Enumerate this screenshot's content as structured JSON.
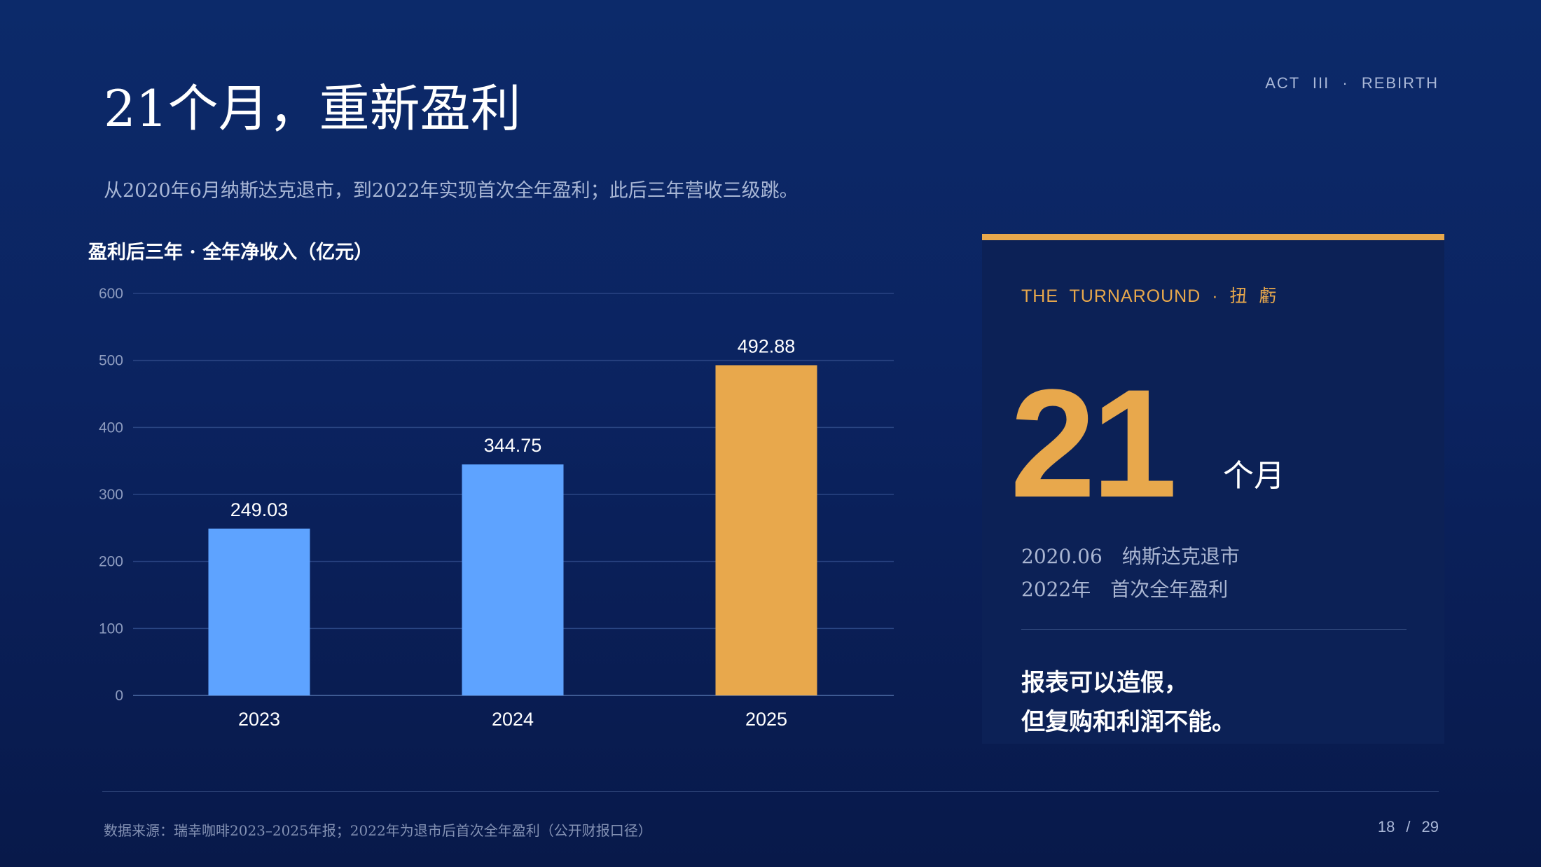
{
  "header": {
    "act_label": "ACT  III  ·  REBIRTH",
    "title": "21个月，重新盈利",
    "subtitle": "从2020年6月纳斯达克退市，到2022年实现首次全年盈利；此后三年营收三级跳。"
  },
  "chart_data": {
    "type": "bar",
    "title": "盈利后三年 · 全年净收入（亿元）",
    "categories": [
      "2023",
      "2024",
      "2025"
    ],
    "values": [
      249.03,
      344.75,
      492.88
    ],
    "value_labels": [
      "249.03",
      "344.75",
      "492.88"
    ],
    "yticks": [
      0,
      100,
      200,
      300,
      400,
      500,
      600
    ],
    "ylim": [
      0,
      600
    ],
    "grid": true,
    "colors": [
      "#5ea3ff",
      "#5ea3ff",
      "#e8a84c"
    ]
  },
  "card": {
    "tag": "THE  TURNAROUND  ·  扭 虧",
    "big_number": "21",
    "big_unit": "个月",
    "lines": [
      {
        "date": "2020.06",
        "text": "纳斯达克退市"
      },
      {
        "date": "2022年",
        "text": "首次全年盈利"
      }
    ],
    "quote_lines": [
      "报表可以造假，",
      "但复购和利润不能。"
    ],
    "accent_color": "#e8a84c"
  },
  "footer": {
    "source": "数据来源：瑞幸咖啡2023–2025年报；2022年为退市后首次全年盈利（公开财报口径）",
    "page_current": "18",
    "page_sep": "/",
    "page_total": "29"
  }
}
